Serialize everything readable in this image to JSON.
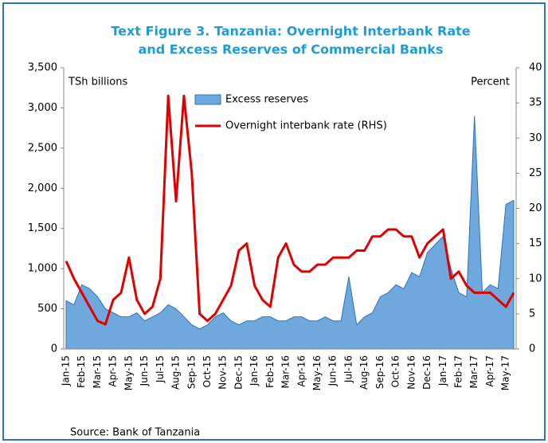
{
  "chart_data": {
    "type": "area_line",
    "title": [
      "Text Figure 3. Tanzania: Overnight Interbank Rate",
      "and Excess Reserves of Commercial Banks"
    ],
    "y_label": "TSh billions",
    "y2_label": "Percent",
    "source": "Source: Bank of Tanzania",
    "categories": [
      "Jan-15",
      null,
      "Feb-15",
      null,
      "Mar-15",
      null,
      "Apr-15",
      null,
      "May-15",
      null,
      "Jun-15",
      null,
      "Jul-15",
      null,
      "Aug-15",
      null,
      "Sep-15",
      null,
      "Oct-15",
      null,
      "Nov-15",
      null,
      "Dec-15",
      null,
      "Jan-16",
      null,
      "Feb-16",
      null,
      "Mar-16",
      null,
      "Apr-16",
      null,
      "May-16",
      null,
      "Jun-16",
      null,
      "Jul-16",
      null,
      "Aug-16",
      null,
      "Sep-16",
      null,
      "Oct-16",
      null,
      "Nov-16",
      null,
      "Dec-16",
      null,
      "Jan-17",
      null,
      "Feb-17",
      null,
      "Mar-17",
      null,
      "Apr-17",
      null,
      "May-17",
      null
    ],
    "series": [
      {
        "name": "Excess reserves",
        "type": "area",
        "color": "#6fa8dc",
        "edge": "#2e75b6",
        "values": [
          600,
          550,
          800,
          750,
          650,
          500,
          450,
          400,
          400,
          450,
          350,
          400,
          450,
          550,
          500,
          400,
          300,
          250,
          300,
          400,
          450,
          350,
          300,
          350,
          350,
          400,
          400,
          350,
          350,
          400,
          400,
          350,
          350,
          400,
          350,
          350,
          900,
          300,
          400,
          450,
          650,
          700,
          800,
          750,
          950,
          900,
          1200,
          1300,
          1400,
          1000,
          700,
          650,
          2900,
          700,
          800,
          750,
          1800,
          1850
        ]
      },
      {
        "name": "Overnight interbank rate (RHS)",
        "type": "line",
        "axis": "y2",
        "color": "#e00000",
        "values": [
          12.5,
          10,
          8,
          6,
          4,
          3.5,
          7,
          8,
          13,
          7,
          5,
          6,
          10,
          36,
          21,
          36,
          25,
          5,
          4,
          5,
          7,
          9,
          14,
          15,
          9,
          7,
          6,
          13,
          15,
          12,
          11,
          11,
          12,
          12,
          13,
          13,
          13,
          14,
          14,
          16,
          16,
          17,
          17,
          16,
          16,
          13,
          15,
          16,
          17,
          10,
          11,
          9,
          8,
          8,
          8,
          7,
          6,
          8
        ]
      }
    ],
    "ylim": [
      0,
      3500
    ],
    "yticks": [
      0,
      500,
      {
        "value": 1000,
        "label": "1,000"
      },
      {
        "value": 1500,
        "label": "1,500"
      },
      {
        "value": 2000,
        "label": "2,000"
      },
      {
        "value": 2500,
        "label": "2,500"
      },
      {
        "value": 3000,
        "label": "3,000"
      },
      {
        "value": 3500,
        "label": "3,500"
      }
    ],
    "y2lim": [
      0,
      40
    ],
    "y2ticks": [
      0,
      5,
      10,
      15,
      20,
      25,
      30,
      35,
      40
    ]
  }
}
